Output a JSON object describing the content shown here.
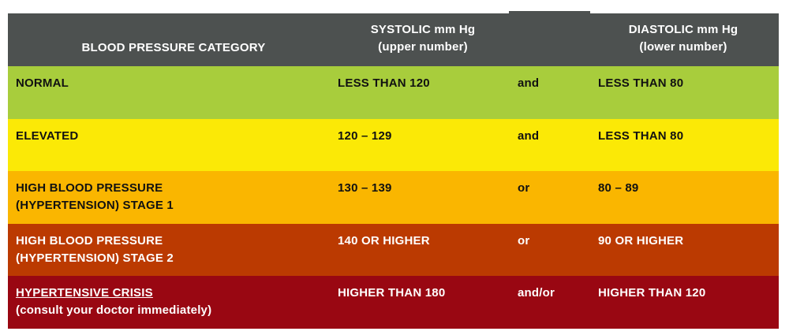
{
  "header": {
    "category": "BLOOD PRESSURE CATEGORY",
    "systolic_line1": "SYSTOLIC mm Hg",
    "systolic_line2": "(upper number)",
    "diastolic_line1": "DIASTOLIC mm Hg",
    "diastolic_line2": "(lower number)"
  },
  "rows": [
    {
      "category_line1": "NORMAL",
      "category_line2": "",
      "systolic": "LESS THAN 120",
      "connector": "and",
      "diastolic": "LESS THAN 80",
      "color": "#a8cd3c"
    },
    {
      "category_line1": "ELEVATED",
      "category_line2": "",
      "systolic": "120 – 129",
      "connector": "and",
      "diastolic": "LESS THAN 80",
      "color": "#fbe906"
    },
    {
      "category_line1": "HIGH BLOOD PRESSURE",
      "category_line2": "(HYPERTENSION) STAGE 1",
      "systolic": "130 – 139",
      "connector": "or",
      "diastolic": "80 – 89",
      "color": "#fab600"
    },
    {
      "category_line1": "HIGH BLOOD PRESSURE",
      "category_line2": "(HYPERTENSION) STAGE 2",
      "systolic": "140 OR HIGHER",
      "connector": "or",
      "diastolic": "90 OR HIGHER",
      "color": "#bb3a01"
    },
    {
      "category_line1": "HYPERTENSIVE CRISIS",
      "category_line2": "(consult your doctor immediately)",
      "systolic": "HIGHER THAN 180",
      "connector": "and/or",
      "diastolic": "HIGHER THAN 120",
      "color": "#990712"
    }
  ],
  "colors": {
    "header_bg": "#4d5150"
  }
}
